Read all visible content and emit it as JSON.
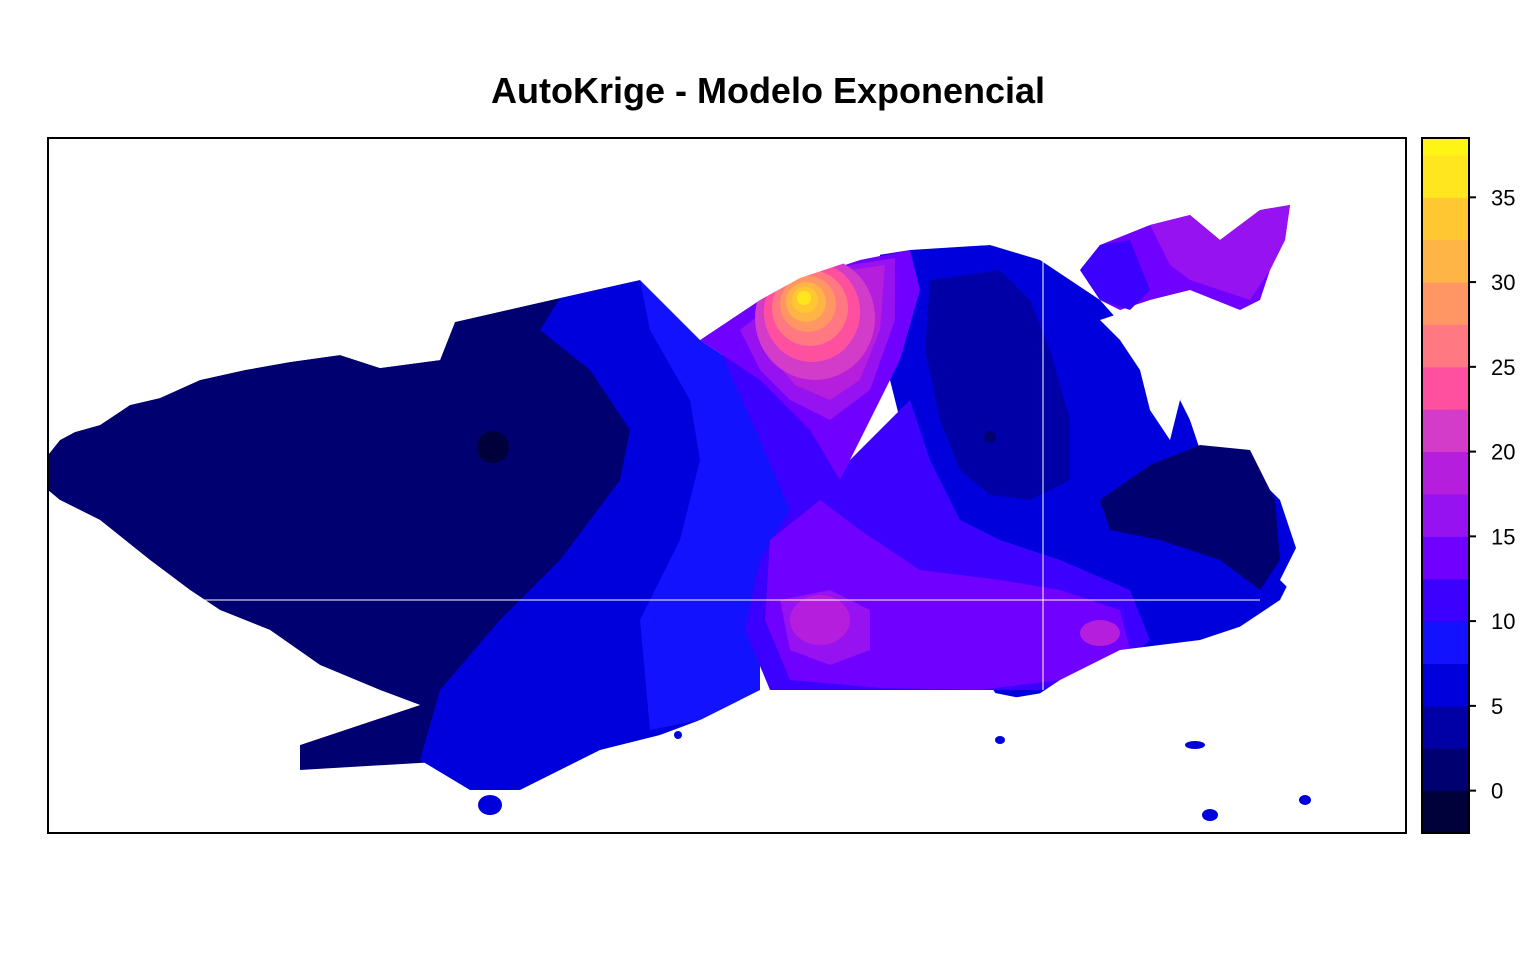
{
  "title": "AutoKrige - Modelo Exponencial",
  "map_data": {
    "type": "contour-map",
    "frame": "box",
    "region_fill_description": null
  },
  "legend": {
    "type": "colorbar",
    "placement": "right",
    "levels": [
      -2.5,
      0,
      2.5,
      5,
      7.5,
      10,
      12.5,
      15,
      17.5,
      20,
      22.5,
      25,
      27.5,
      30,
      32.5,
      35,
      37.5,
      38.5
    ],
    "colors": [
      "#00003A",
      "#000070",
      "#0000A6",
      "#0000DC",
      "#1212FF",
      "#3C00FF",
      "#7000FF",
      "#9612F0",
      "#B41EDC",
      "#D23CC8",
      "#FF50A0",
      "#FF7882",
      "#FF9664",
      "#FFB446",
      "#FFC832",
      "#FFE61E",
      "#FFF514",
      "#FFFF50"
    ],
    "ticks": [
      0,
      5,
      10,
      15,
      20,
      25,
      30,
      35
    ]
  }
}
